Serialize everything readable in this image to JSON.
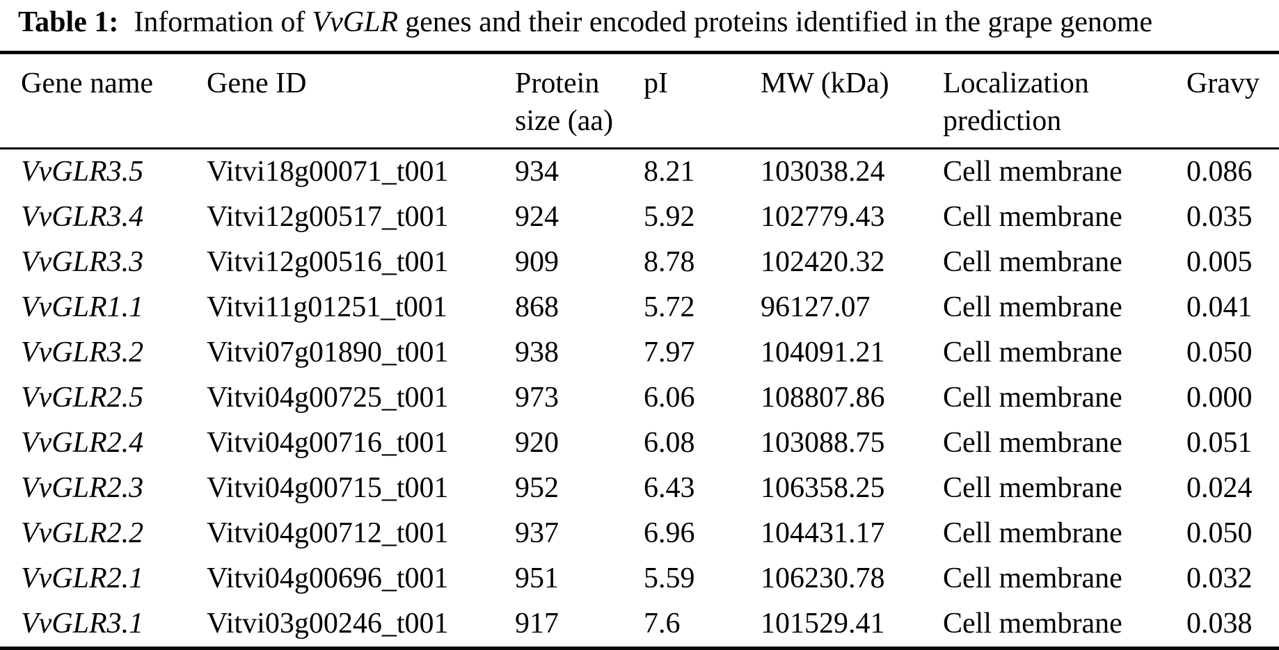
{
  "title": {
    "label": "Table 1:",
    "text_before_gene": "Information of",
    "gene_italic": "VvGLR",
    "text_after_gene": "genes and their encoded proteins identified in the grape genome"
  },
  "table": {
    "columns": [
      "Gene name",
      "Gene ID",
      "Protein size (aa)",
      "pI",
      "MW (kDa)",
      "Localization prediction",
      "Gravy"
    ],
    "rows": [
      {
        "gene_name": "VvGLR3.5",
        "gene_id": "Vitvi18g00071_t001",
        "protein_size_aa": "934",
        "pi": "8.21",
        "mw_kda": "103038.24",
        "localization": "Cell membrane",
        "gravy": "0.086"
      },
      {
        "gene_name": "VvGLR3.4",
        "gene_id": "Vitvi12g00517_t001",
        "protein_size_aa": "924",
        "pi": "5.92",
        "mw_kda": "102779.43",
        "localization": "Cell membrane",
        "gravy": "0.035"
      },
      {
        "gene_name": "VvGLR3.3",
        "gene_id": "Vitvi12g00516_t001",
        "protein_size_aa": "909",
        "pi": "8.78",
        "mw_kda": "102420.32",
        "localization": "Cell membrane",
        "gravy": "0.005"
      },
      {
        "gene_name": "VvGLR1.1",
        "gene_id": "Vitvi11g01251_t001",
        "protein_size_aa": "868",
        "pi": "5.72",
        "mw_kda": "96127.07",
        "localization": "Cell membrane",
        "gravy": "0.041"
      },
      {
        "gene_name": "VvGLR3.2",
        "gene_id": "Vitvi07g01890_t001",
        "protein_size_aa": "938",
        "pi": "7.97",
        "mw_kda": "104091.21",
        "localization": "Cell membrane",
        "gravy": "0.050"
      },
      {
        "gene_name": "VvGLR2.5",
        "gene_id": "Vitvi04g00725_t001",
        "protein_size_aa": "973",
        "pi": "6.06",
        "mw_kda": "108807.86",
        "localization": "Cell membrane",
        "gravy": "0.000"
      },
      {
        "gene_name": "VvGLR2.4",
        "gene_id": "Vitvi04g00716_t001",
        "protein_size_aa": "920",
        "pi": "6.08",
        "mw_kda": "103088.75",
        "localization": "Cell membrane",
        "gravy": "0.051"
      },
      {
        "gene_name": "VvGLR2.3",
        "gene_id": "Vitvi04g00715_t001",
        "protein_size_aa": "952",
        "pi": "6.43",
        "mw_kda": "106358.25",
        "localization": "Cell membrane",
        "gravy": "0.024"
      },
      {
        "gene_name": "VvGLR2.2",
        "gene_id": "Vitvi04g00712_t001",
        "protein_size_aa": "937",
        "pi": "6.96",
        "mw_kda": "104431.17",
        "localization": "Cell membrane",
        "gravy": "0.050"
      },
      {
        "gene_name": "VvGLR2.1",
        "gene_id": "Vitvi04g00696_t001",
        "protein_size_aa": "951",
        "pi": "5.59",
        "mw_kda": "106230.78",
        "localization": "Cell membrane",
        "gravy": "0.032"
      },
      {
        "gene_name": "VvGLR3.1",
        "gene_id": "Vitvi03g00246_t001",
        "protein_size_aa": "917",
        "pi": "7.6",
        "mw_kda": "101529.41",
        "localization": "Cell membrane",
        "gravy": "0.038"
      }
    ]
  },
  "colors": {
    "text": "#000000",
    "background": "#ffffff",
    "rule": "#0a0a0a"
  }
}
